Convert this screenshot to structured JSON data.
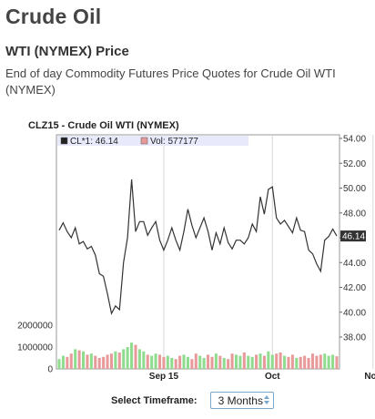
{
  "page": {
    "title": "Crude Oil",
    "subtitle": "WTI (NYMEX) Price",
    "description": "End of day Commodity Futures Price Quotes for Crude Oil WTI (NYMEX)"
  },
  "timeframe": {
    "label": "Select Timeframe:",
    "selected": "3 Months"
  },
  "colors": {
    "price_line": "#333333",
    "volume_bar": "#8fdc8f",
    "volume_bar_alt": "#e89a9a",
    "legend_bg": "#e8eafc",
    "last_price_bg": "#333333"
  },
  "chart_data": {
    "type": "line",
    "title": "CLZ15 - Crude Oil WTI (NYMEX)",
    "legend": [
      {
        "label": "CL*1: 46.14",
        "color": "#222222"
      },
      {
        "label": "Vol: 577177",
        "color": "#e89a9a"
      }
    ],
    "last_price_label": "46.14",
    "price_axis": {
      "min": 38,
      "max": 54,
      "ticks": [
        "54.00",
        "52.00",
        "50.00",
        "48.00",
        "46.00",
        "44.00",
        "42.00",
        "40.00",
        "38.00"
      ]
    },
    "volume_axis": {
      "min": 0,
      "max": 2000000,
      "ticks": [
        "2000000",
        "1000000",
        "0"
      ]
    },
    "x_labels": [
      "Sep 15",
      "Oct",
      "Nov"
    ],
    "x_label_index": [
      26,
      53,
      78
    ],
    "series": [
      {
        "values": [
          46.6,
          47.2,
          46.5,
          46.0,
          46.8,
          45.5,
          45.7,
          45.1,
          45.3,
          44.6,
          43.1,
          42.9,
          41.5,
          39.9,
          40.5,
          40.2,
          44.0,
          46.0,
          50.7,
          46.5,
          47.3,
          47.3,
          46.2,
          46.8,
          47.3,
          45.8,
          45.0,
          45.8,
          46.8,
          45.8,
          45.0,
          46.5,
          48.3,
          47.0,
          46.0,
          46.8,
          47.6,
          46.5,
          45.0,
          46.4,
          45.5,
          46.8,
          45.6,
          45.1,
          45.8,
          45.8,
          45.5,
          46.0,
          47.1,
          46.5,
          49.3,
          47.9,
          49.9,
          50.1,
          47.6,
          47.1,
          47.4,
          46.9,
          46.4,
          47.6,
          46.6,
          46.5,
          45.0,
          44.7,
          43.9,
          43.3,
          45.8,
          46.1,
          46.7,
          46.14
        ]
      }
    ],
    "volume": [
      450000,
      600000,
      550000,
      700000,
      900000,
      850000,
      800000,
      650000,
      700000,
      600000,
      500000,
      550000,
      650000,
      700000,
      800000,
      750000,
      900000,
      1000000,
      1200000,
      1100000,
      900000,
      800000,
      650000,
      600000,
      700000,
      650000,
      550000,
      600000,
      500000,
      450000,
      600000,
      650000,
      550000,
      450000,
      700000,
      600000,
      500000,
      650000,
      550000,
      700000,
      600000,
      500000,
      450000,
      700000,
      650000,
      600000,
      750000,
      600000,
      550000,
      650000,
      700000,
      600000,
      800000,
      650000,
      700000,
      750000,
      600000,
      550000,
      650000,
      500000,
      550000,
      600000,
      500000,
      700000,
      600000,
      650000,
      700000,
      600000,
      650000,
      577177
    ]
  }
}
